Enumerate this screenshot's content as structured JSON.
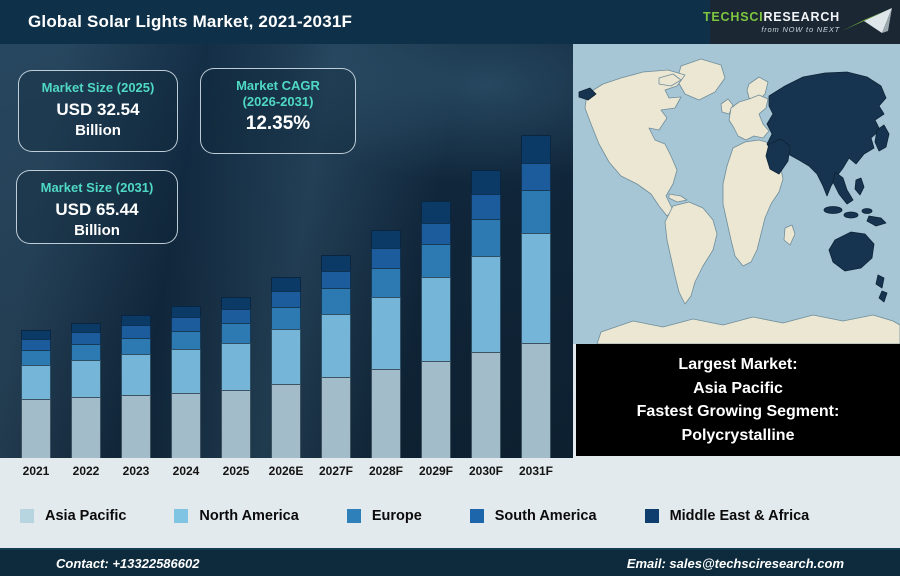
{
  "header": {
    "title": "Global Solar Lights Market, 2021-2031F",
    "logo": {
      "brand_primary": "TechSci",
      "brand_secondary": "Research",
      "tagline": "from NOW to NEXT",
      "brand_green": "#7ec63f"
    }
  },
  "info_boxes": [
    {
      "title": "Market Size (2025)",
      "value": "USD 32.54",
      "unit": "Billion"
    },
    {
      "title": "Market CAGR (2026-2031)",
      "value": "12.35%"
    },
    {
      "title": "Market Size (2031)",
      "value": "USD 65.44",
      "unit": "Billion"
    }
  ],
  "accent_teal": "#4fd9c4",
  "chart_data": {
    "type": "bar",
    "stacked": true,
    "title": "Global Solar Lights Market, 2021-2031F",
    "unit": "USD Billion",
    "legend_position": "bottom",
    "grid": false,
    "categories": [
      "2021",
      "2022",
      "2023",
      "2024",
      "2025",
      "2026E",
      "2027F",
      "2028F",
      "2029F",
      "2030F",
      "2031F"
    ],
    "series": [
      {
        "name": "Asia Pacific",
        "color": "#a2bcc9",
        "values": [
          11.95,
          12.34,
          12.82,
          13.23,
          13.68,
          15.01,
          16.41,
          17.93,
          19.63,
          21.41,
          23.3
        ]
      },
      {
        "name": "North America",
        "color": "#74b5d8",
        "values": [
          6.94,
          7.53,
          8.21,
          8.9,
          9.66,
          11.17,
          12.84,
          14.74,
          16.93,
          19.43,
          22.25
        ]
      },
      {
        "name": "Europe",
        "color": "#2d7ab3",
        "values": [
          2.89,
          3.11,
          3.36,
          3.62,
          3.9,
          4.5,
          5.14,
          5.87,
          6.7,
          7.64,
          8.7
        ]
      },
      {
        "name": "South America",
        "color": "#1c5c9c",
        "values": [
          2.32,
          2.43,
          2.58,
          2.7,
          2.86,
          3.19,
          3.54,
          3.97,
          4.41,
          4.96,
          5.5
        ]
      },
      {
        "name": "Middle East & Africa",
        "color": "#0c3a67",
        "values": [
          1.73,
          1.88,
          2.06,
          2.24,
          2.44,
          2.82,
          3.25,
          3.74,
          4.31,
          4.96,
          5.69
        ]
      }
    ],
    "totals": [
      25.83,
      27.29,
      29.03,
      30.69,
      32.54,
      36.69,
      41.18,
      46.25,
      51.98,
      58.4,
      65.44
    ]
  },
  "legend": [
    {
      "label": "Asia Pacific",
      "color": "#b7d4e1"
    },
    {
      "label": "North America",
      "color": "#7fc4e2"
    },
    {
      "label": "Europe",
      "color": "#2d80ba"
    },
    {
      "label": "South America",
      "color": "#1e66ab"
    },
    {
      "label": "Middle East & Africa",
      "color": "#0e3e6e"
    }
  ],
  "highlight_box": {
    "lines": [
      "Largest Market:",
      "Asia Pacific",
      "Fastest Growing Segment:",
      "Polycrystalline"
    ]
  },
  "map": {
    "ocean_color": "#a6c6d5",
    "land_color": "#ece7d2",
    "highlight_color": "#16334f",
    "highlighted_region": "Asia Pacific"
  },
  "footer": {
    "contact": "Contact: +13322586602",
    "email": "Email: sales@techsciresearch.com"
  }
}
